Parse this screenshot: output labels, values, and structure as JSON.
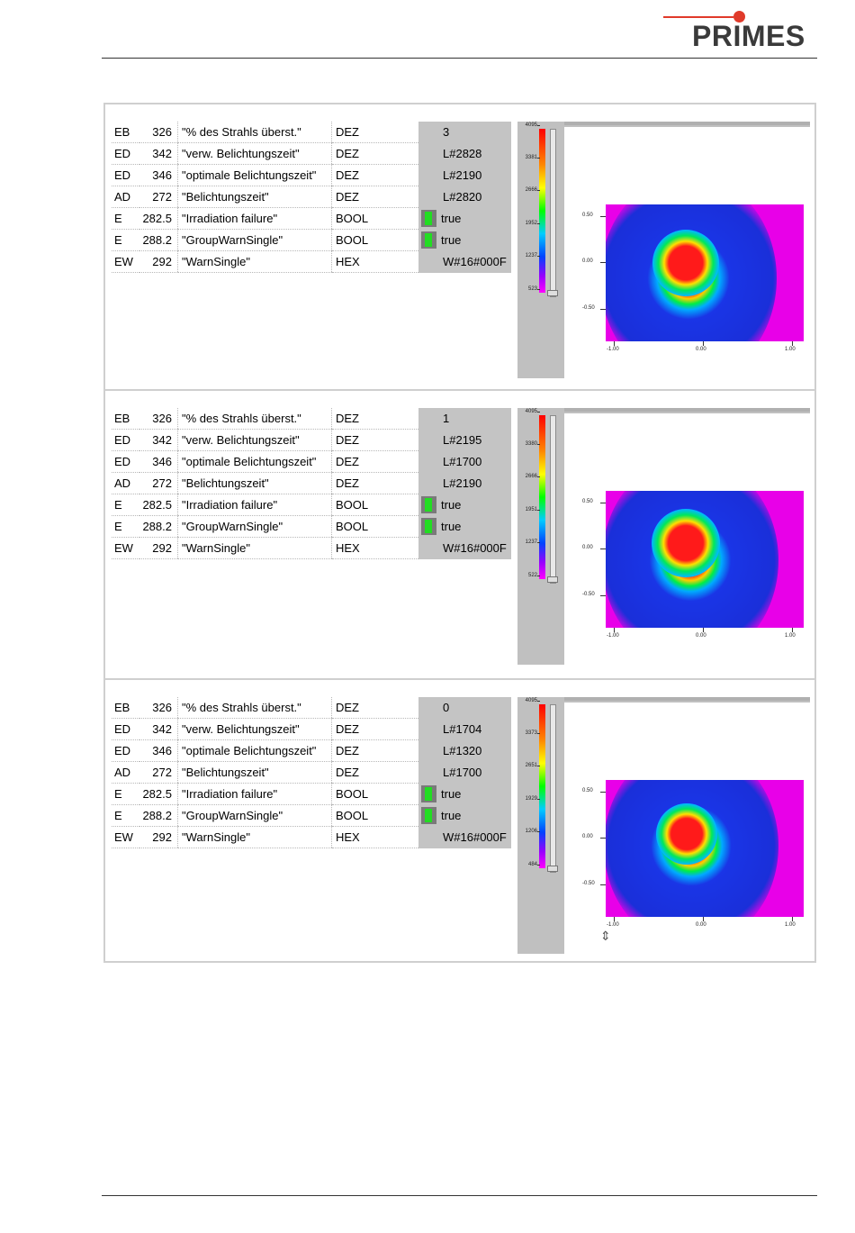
{
  "header": {
    "brand": "PRIMES"
  },
  "colors": {
    "brand_red": "#e03a2a",
    "value_cell": "#c4c4c4",
    "status_green": "#22dd22"
  },
  "icons": {
    "bool_indicator": "status-indicator-icon",
    "resize": "resize-vertical-icon"
  },
  "panels": [
    {
      "rows": [
        {
          "type": "EB",
          "addr": "326",
          "symbol": "\"% des Strahls überst.\"",
          "format": "DEZ",
          "value": "3",
          "bool": false
        },
        {
          "type": "ED",
          "addr": "342",
          "symbol": "\"verw. Belichtungszeit\"",
          "format": "DEZ",
          "value": "L#2828",
          "bool": false
        },
        {
          "type": "ED",
          "addr": "346",
          "symbol": "\"optimale Belichtungszeit\"",
          "format": "DEZ",
          "value": "L#2190",
          "bool": false
        },
        {
          "type": "AD",
          "addr": "272",
          "symbol": "\"Belichtungszeit\"",
          "format": "DEZ",
          "value": "L#2820",
          "bool": false
        },
        {
          "type": "E",
          "addr": "282.5",
          "symbol": "\"Irradiation failure\"",
          "format": "BOOL",
          "value": "true",
          "bool": true
        },
        {
          "type": "E",
          "addr": "288.2",
          "symbol": "\"GroupWarnSingle\"",
          "format": "BOOL",
          "value": "true",
          "bool": true
        },
        {
          "type": "EW",
          "addr": "292",
          "symbol": "\"WarnSingle\"",
          "format": "HEX",
          "value": "W#16#000F",
          "bool": false
        }
      ],
      "scale": [
        "4095",
        "3381",
        "2666",
        "1952",
        "1237",
        "523"
      ],
      "y_axis": [
        "0.50",
        "0.00",
        "-0.50"
      ],
      "x_axis": [
        "-1.00",
        "0.00",
        "1.00"
      ]
    },
    {
      "rows": [
        {
          "type": "EB",
          "addr": "326",
          "symbol": "\"% des Strahls überst.\"",
          "format": "DEZ",
          "value": "1",
          "bool": false
        },
        {
          "type": "ED",
          "addr": "342",
          "symbol": "\"verw. Belichtungszeit\"",
          "format": "DEZ",
          "value": "L#2195",
          "bool": false
        },
        {
          "type": "ED",
          "addr": "346",
          "symbol": "\"optimale Belichtungszeit\"",
          "format": "DEZ",
          "value": "L#1700",
          "bool": false
        },
        {
          "type": "AD",
          "addr": "272",
          "symbol": "\"Belichtungszeit\"",
          "format": "DEZ",
          "value": "L#2190",
          "bool": false
        },
        {
          "type": "E",
          "addr": "282.5",
          "symbol": "\"Irradiation failure\"",
          "format": "BOOL",
          "value": "true",
          "bool": true
        },
        {
          "type": "E",
          "addr": "288.2",
          "symbol": "\"GroupWarnSingle\"",
          "format": "BOOL",
          "value": "true",
          "bool": true
        },
        {
          "type": "EW",
          "addr": "292",
          "symbol": "\"WarnSingle\"",
          "format": "HEX",
          "value": "W#16#000F",
          "bool": false
        }
      ],
      "scale": [
        "4095",
        "3380",
        "2666",
        "1951",
        "1237",
        "522"
      ],
      "y_axis": [
        "0.50",
        "0.00",
        "-0.50"
      ],
      "x_axis": [
        "-1.00",
        "0.00",
        "1.00"
      ]
    },
    {
      "rows": [
        {
          "type": "EB",
          "addr": "326",
          "symbol": "\"% des Strahls überst.\"",
          "format": "DEZ",
          "value": "0",
          "bool": false
        },
        {
          "type": "ED",
          "addr": "342",
          "symbol": "\"verw. Belichtungszeit\"",
          "format": "DEZ",
          "value": "L#1704",
          "bool": false
        },
        {
          "type": "ED",
          "addr": "346",
          "symbol": "\"optimale Belichtungszeit\"",
          "format": "DEZ",
          "value": "L#1320",
          "bool": false
        },
        {
          "type": "AD",
          "addr": "272",
          "symbol": "\"Belichtungszeit\"",
          "format": "DEZ",
          "value": "L#1700",
          "bool": false
        },
        {
          "type": "E",
          "addr": "282.5",
          "symbol": "\"Irradiation failure\"",
          "format": "BOOL",
          "value": "true",
          "bool": true
        },
        {
          "type": "E",
          "addr": "288.2",
          "symbol": "\"GroupWarnSingle\"",
          "format": "BOOL",
          "value": "true",
          "bool": true
        },
        {
          "type": "EW",
          "addr": "292",
          "symbol": "\"WarnSingle\"",
          "format": "HEX",
          "value": "W#16#000F",
          "bool": false
        }
      ],
      "scale": [
        "4095",
        "3373",
        "2651",
        "1929",
        "1206",
        "484"
      ],
      "y_axis": [
        "0.50",
        "0.00",
        "-0.50"
      ],
      "x_axis": [
        "-1.00",
        "0.00",
        "1.00"
      ]
    }
  ]
}
